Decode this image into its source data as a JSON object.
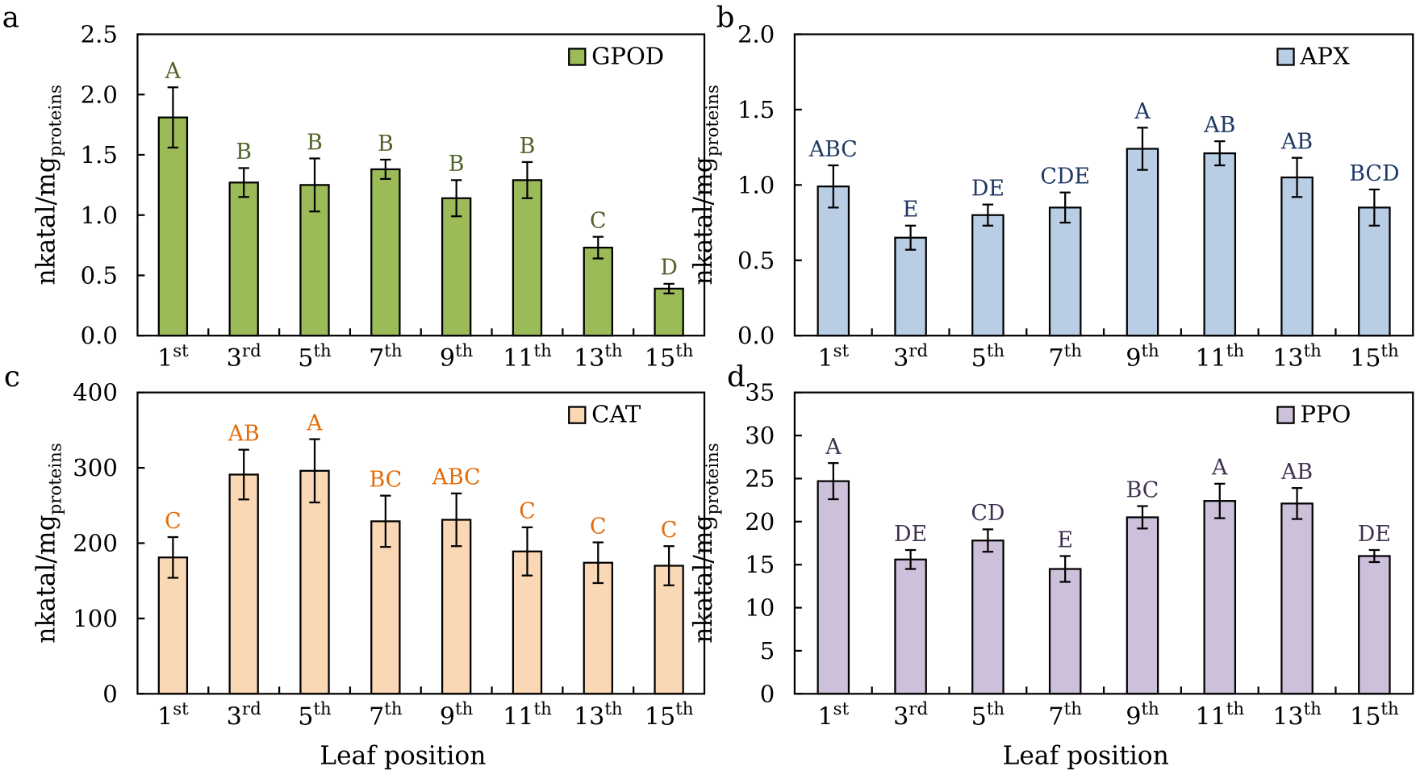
{
  "chart_data": [
    {
      "panel": "a",
      "type": "bar",
      "legend": "GPOD",
      "color": "#9BBB59",
      "letter_color": "#4F6228",
      "ylabel": "nkatal/mg",
      "ylabel_sub": "proteins",
      "xlabel": "",
      "ylim": [
        0,
        2.5
      ],
      "yticks": [
        "0.0",
        "0.5",
        "1.0",
        "1.5",
        "2.0",
        "2.5"
      ],
      "categories": [
        [
          "1",
          "st"
        ],
        [
          "3",
          "rd"
        ],
        [
          "5",
          "th"
        ],
        [
          "7",
          "th"
        ],
        [
          "9",
          "th"
        ],
        [
          "11",
          "th"
        ],
        [
          "13",
          "th"
        ],
        [
          "15",
          "th"
        ]
      ],
      "values": [
        1.81,
        1.27,
        1.25,
        1.38,
        1.14,
        1.29,
        0.73,
        0.39
      ],
      "errors": [
        0.25,
        0.12,
        0.22,
        0.08,
        0.15,
        0.15,
        0.09,
        0.04
      ],
      "letters": [
        "A",
        "B",
        "B",
        "B",
        "B",
        "B",
        "C",
        "D"
      ]
    },
    {
      "panel": "b",
      "type": "bar",
      "legend": "APX",
      "color": "#B9CDE5",
      "letter_color": "#1F3864",
      "ylabel": "nkatal/mg",
      "ylabel_sub": "proteins",
      "xlabel": "",
      "ylim": [
        0,
        2.0
      ],
      "yticks": [
        "0.0",
        "0.5",
        "1.0",
        "1.5",
        "2.0"
      ],
      "categories": [
        [
          "1",
          "st"
        ],
        [
          "3",
          "rd"
        ],
        [
          "5",
          "th"
        ],
        [
          "7",
          "th"
        ],
        [
          "9",
          "th"
        ],
        [
          "11",
          "th"
        ],
        [
          "13",
          "th"
        ],
        [
          "15",
          "th"
        ]
      ],
      "values": [
        0.99,
        0.65,
        0.8,
        0.85,
        1.24,
        1.21,
        1.05,
        0.85
      ],
      "errors": [
        0.14,
        0.08,
        0.07,
        0.1,
        0.14,
        0.08,
        0.13,
        0.12
      ],
      "letters": [
        "ABC",
        "E",
        "DE",
        "CDE",
        "A",
        "AB",
        "AB",
        "BCD"
      ]
    },
    {
      "panel": "c",
      "type": "bar",
      "legend": "CAT",
      "color": "#FAD7B5",
      "letter_color": "#E36C09",
      "ylabel": "nkatal/mg",
      "ylabel_sub": "proteins",
      "xlabel": "Leaf position",
      "ylim": [
        0,
        400
      ],
      "yticks": [
        "0",
        "100",
        "200",
        "300",
        "400"
      ],
      "categories": [
        [
          "1",
          "st"
        ],
        [
          "3",
          "rd"
        ],
        [
          "5",
          "th"
        ],
        [
          "7",
          "th"
        ],
        [
          "9",
          "th"
        ],
        [
          "11",
          "th"
        ],
        [
          "13",
          "th"
        ],
        [
          "15",
          "th"
        ]
      ],
      "values": [
        181,
        291,
        296,
        229,
        231,
        189,
        174,
        170
      ],
      "errors": [
        27,
        33,
        42,
        34,
        35,
        32,
        27,
        26
      ],
      "letters": [
        "C",
        "AB",
        "A",
        "BC",
        "ABC",
        "C",
        "C",
        "C"
      ]
    },
    {
      "panel": "d",
      "type": "bar",
      "legend": "PPO",
      "color": "#CCC0DA",
      "letter_color": "#403151",
      "ylabel": "nkatal/mg",
      "ylabel_sub": "proteins",
      "xlabel": "Leaf position",
      "ylim": [
        0,
        35
      ],
      "yticks": [
        "0",
        "5",
        "10",
        "15",
        "20",
        "25",
        "30",
        "35"
      ],
      "categories": [
        [
          "1",
          "st"
        ],
        [
          "3",
          "rd"
        ],
        [
          "5",
          "th"
        ],
        [
          "7",
          "th"
        ],
        [
          "9",
          "th"
        ],
        [
          "11",
          "th"
        ],
        [
          "13",
          "th"
        ],
        [
          "15",
          "th"
        ]
      ],
      "values": [
        24.7,
        15.6,
        17.8,
        14.5,
        20.5,
        22.4,
        22.1,
        16.0
      ],
      "errors": [
        2.1,
        1.1,
        1.3,
        1.5,
        1.3,
        2.0,
        1.8,
        0.7
      ],
      "letters": [
        "A",
        "DE",
        "CD",
        "E",
        "BC",
        "A",
        "AB",
        "DE"
      ]
    }
  ]
}
